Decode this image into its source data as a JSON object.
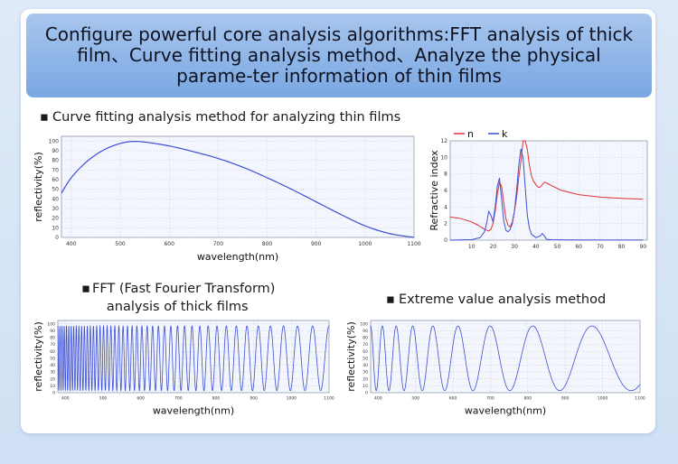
{
  "banner": {
    "title": "Configure powerful core analysis algorithms:FFT analysis of thick film、Curve fitting analysis method、Analyze the physical parame-ter information of thin films"
  },
  "sections": {
    "curve_fitting": "Curve fitting analysis method for analyzing thin films",
    "fft_line1": "FFT (Fast Fourier Transform)",
    "fft_line2": "analysis of thick films",
    "extreme": "Extreme value analysis method"
  },
  "bullet": "▪",
  "colors": {
    "blue": "#3d4fd6",
    "red": "#e0303a"
  },
  "chart_data": [
    {
      "id": "reflectivity_fit",
      "type": "line",
      "xlabel": "wavelength(nm)",
      "ylabel": "reflectivity(%)",
      "xlim": [
        380,
        1100
      ],
      "ylim": [
        0,
        105
      ],
      "xticks": [
        400,
        500,
        600,
        700,
        800,
        900,
        1000,
        1100
      ],
      "yticks": [
        0,
        10,
        20,
        30,
        40,
        50,
        60,
        70,
        80,
        90,
        100
      ],
      "series": [
        {
          "x": [
            380,
            400,
            430,
            460,
            490,
            520,
            550,
            600,
            650,
            700,
            750,
            800,
            850,
            900,
            950,
            1000,
            1050,
            1100
          ],
          "y": [
            46,
            62,
            78,
            89,
            96,
            99.5,
            99,
            95,
            89,
            82,
            73,
            62,
            50,
            37,
            24,
            12,
            4,
            0
          ]
        }
      ]
    },
    {
      "id": "refractive_index",
      "type": "line",
      "ylabel": "Refractive index",
      "xlim": [
        0,
        92
      ],
      "ylim": [
        0,
        12
      ],
      "xticks": [
        10,
        20,
        30,
        40,
        50,
        60,
        70,
        80,
        90
      ],
      "yticks": [
        0,
        2,
        4,
        6,
        8,
        10,
        12
      ],
      "series": [
        {
          "name": "n",
          "color": "#e0303a",
          "x": [
            0,
            5,
            10,
            13,
            16,
            18,
            19,
            20,
            21,
            22,
            23,
            24,
            25,
            26,
            27,
            28,
            29,
            30,
            31,
            32,
            33,
            34,
            35,
            36,
            37,
            38,
            39,
            40,
            41,
            42,
            43,
            44,
            45,
            48,
            52,
            60,
            70,
            80,
            90
          ],
          "y": [
            2.8,
            2.6,
            2.2,
            1.8,
            1.3,
            1.1,
            1.3,
            2.0,
            3.5,
            5.5,
            7.0,
            6.5,
            4.5,
            2.6,
            1.8,
            1.6,
            2.2,
            3.5,
            5.2,
            7.5,
            9.5,
            12,
            12.5,
            11,
            9,
            7.7,
            7.1,
            6.7,
            6.4,
            6.4,
            6.7,
            7.0,
            6.9,
            6.5,
            6.0,
            5.5,
            5.2,
            5.05,
            4.95
          ]
        },
        {
          "name": "k",
          "color": "#3d4fd6",
          "x": [
            0,
            10,
            14,
            16,
            17,
            18,
            19,
            20,
            21,
            22,
            23,
            24,
            25,
            26,
            27,
            28,
            29,
            30,
            31,
            32,
            33,
            34,
            35,
            36,
            37,
            38,
            40,
            42,
            43,
            44,
            45,
            47,
            55,
            70,
            90
          ],
          "y": [
            0,
            0.05,
            0.3,
            1.0,
            2.0,
            3.5,
            3.0,
            2.2,
            4.0,
            6.5,
            7.5,
            5.0,
            2.3,
            1.2,
            1.0,
            1.3,
            2.0,
            3.5,
            6.0,
            9.0,
            11,
            10,
            6.5,
            3.0,
            1.4,
            0.7,
            0.3,
            0.5,
            0.8,
            0.5,
            0.1,
            0.05,
            0.03,
            0.02,
            0.01
          ]
        }
      ],
      "legend": "top-left"
    },
    {
      "id": "fft_thick",
      "type": "line",
      "xlabel": "wavelength(nm)",
      "ylabel": "reflectivity(%)",
      "xlim": [
        380,
        1100
      ],
      "ylim": [
        0,
        105
      ],
      "xticks": [
        400,
        500,
        600,
        700,
        800,
        900,
        1000,
        1100
      ],
      "yticks": [
        0,
        10,
        20,
        30,
        40,
        50,
        60,
        70,
        80,
        90,
        100
      ],
      "oscillation": {
        "min": 3,
        "max": 97,
        "cycles": 46
      }
    },
    {
      "id": "extreme_value",
      "type": "line",
      "xlabel": "wavelength(nm)",
      "ylabel": "reflectivity(%)",
      "xlim": [
        380,
        1100
      ],
      "ylim": [
        0,
        105
      ],
      "xticks": [
        400,
        500,
        600,
        700,
        800,
        900,
        1000,
        1100
      ],
      "yticks": [
        0,
        10,
        20,
        30,
        40,
        50,
        60,
        70,
        80,
        90,
        100
      ],
      "oscillation": {
        "min": 3,
        "max": 97,
        "cycles": 8.6
      }
    }
  ]
}
